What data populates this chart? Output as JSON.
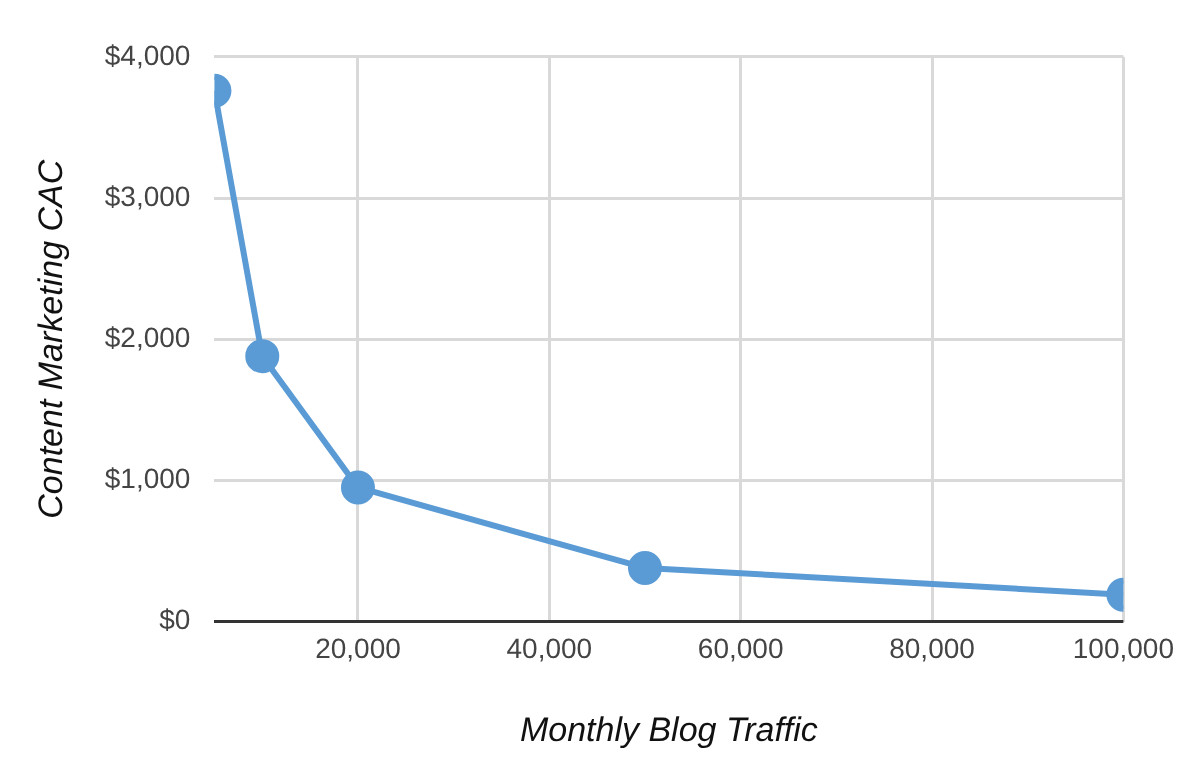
{
  "chart_data": {
    "type": "line",
    "xlabel": "Monthly Blog Traffic",
    "ylabel": "Content Marketing CAC",
    "x": [
      5000,
      10000,
      20000,
      50000,
      100000
    ],
    "series": [
      {
        "color": "#5b9bd5",
        "values": [
          3760,
          1880,
          950,
          380,
          190
        ]
      }
    ],
    "xlim": [
      5000,
      100000
    ],
    "xticks": [
      {
        "value": 20000,
        "label": "20,000"
      },
      {
        "value": 40000,
        "label": "40,000"
      },
      {
        "value": 60000,
        "label": "60,000"
      },
      {
        "value": 80000,
        "label": "80,000"
      },
      {
        "value": 100000,
        "label": "100,000"
      }
    ],
    "ylim": [
      0,
      4000
    ],
    "yticks": [
      {
        "value": 0,
        "label": "$0"
      },
      {
        "value": 1000,
        "label": "$1,000"
      },
      {
        "value": 2000,
        "label": "$2,000"
      },
      {
        "value": 3000,
        "label": "$3,000"
      },
      {
        "value": 4000,
        "label": "$4,000"
      }
    ],
    "grid": true,
    "legend": false,
    "marker": "circle",
    "line_style": "solid"
  }
}
